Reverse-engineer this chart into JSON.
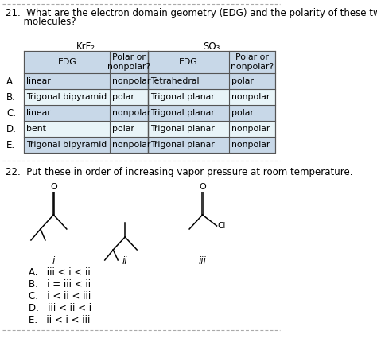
{
  "title_q21_line1": "21.  What are the electron domain geometry (EDG) and the polarity of these two",
  "title_q21_line2": "      molecules?",
  "title_q22": "22.  Put these in order of increasing vapor pressure at room temperature.",
  "krf2_label": "KrF₂",
  "so3_label": "SO₃",
  "header_row": [
    "EDG",
    "Polar or\nnonpolar?",
    "EDG",
    "Polar or\nnonpolar?"
  ],
  "rows": [
    [
      "A.",
      "linear",
      "nonpolar",
      "Tetrahedral",
      "polar"
    ],
    [
      "B.",
      "Trigonal bipyramid",
      "polar",
      "Trigonal planar",
      "nonpolar"
    ],
    [
      "C.",
      "linear",
      "nonpolar",
      "Trigonal planar",
      "polar"
    ],
    [
      "D.",
      "bent",
      "polar",
      "Trigonal planar",
      "nonpolar"
    ],
    [
      "E.",
      "Trigonal bipyramid",
      "nonpolar",
      "Trigonal planar",
      "nonpolar"
    ]
  ],
  "q22_choices": [
    "A.   iii < i < ii",
    "B.   i = iii < ii",
    "C.   i < ii < iii",
    "D.   iii < ii < i",
    "E.   ii < i < iii"
  ],
  "background_color": "#ffffff",
  "table_header_bg": "#c8d8e8",
  "table_alt_bg": "#dce8f0",
  "border_color": "#555555",
  "dash_color": "#aaaaaa",
  "text_color": "#000000",
  "font_size": 8.5,
  "font_size_table": 7.8
}
